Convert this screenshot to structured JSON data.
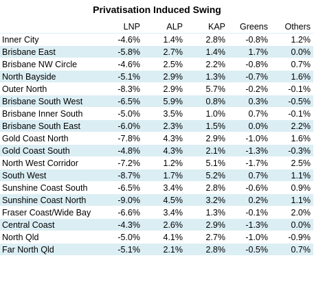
{
  "title": "Privatisation Induced Swing",
  "columns": [
    "",
    "LNP",
    "ALP",
    "KAP",
    "Greens",
    "Others"
  ],
  "rows": [
    [
      "Inner City",
      "-4.6%",
      "1.4%",
      "2.8%",
      "-0.8%",
      "1.2%"
    ],
    [
      "Brisbane East",
      "-5.8%",
      "2.7%",
      "1.4%",
      "1.7%",
      "0.0%"
    ],
    [
      "Brisbane NW Circle",
      "-4.6%",
      "2.5%",
      "2.2%",
      "-0.8%",
      "0.7%"
    ],
    [
      "North Bayside",
      "-5.1%",
      "2.9%",
      "1.3%",
      "-0.7%",
      "1.6%"
    ],
    [
      "Outer North",
      "-8.3%",
      "2.9%",
      "5.7%",
      "-0.2%",
      "-0.1%"
    ],
    [
      "Brisbane South West",
      "-6.5%",
      "5.9%",
      "0.8%",
      "0.3%",
      "-0.5%"
    ],
    [
      "Brisbane Inner South",
      "-5.0%",
      "3.5%",
      "1.0%",
      "0.7%",
      "-0.1%"
    ],
    [
      "Brisbane South East",
      "-6.0%",
      "2.3%",
      "1.5%",
      "0.0%",
      "2.2%"
    ],
    [
      "Gold Coast North",
      "-7.8%",
      "4.3%",
      "2.9%",
      "-1.0%",
      "1.6%"
    ],
    [
      "Gold Coast South",
      "-4.8%",
      "4.3%",
      "2.1%",
      "-1.3%",
      "-0.3%"
    ],
    [
      "North West Corridor",
      "-7.2%",
      "1.2%",
      "5.1%",
      "-1.7%",
      "2.5%"
    ],
    [
      "South West",
      "-8.7%",
      "1.7%",
      "5.2%",
      "0.7%",
      "1.1%"
    ],
    [
      "Sunshine Coast South",
      "-6.5%",
      "3.4%",
      "2.8%",
      "-0.6%",
      "0.9%"
    ],
    [
      "Sunshine Coast North",
      "-9.0%",
      "4.5%",
      "3.2%",
      "0.2%",
      "1.1%"
    ],
    [
      "Fraser Coast/Wide Bay",
      "-6.6%",
      "3.4%",
      "1.3%",
      "-0.1%",
      "2.0%"
    ],
    [
      "Central Coast",
      "-4.3%",
      "2.6%",
      "2.9%",
      "-1.3%",
      "0.0%"
    ],
    [
      "North Qld",
      "-5.0%",
      "4.1%",
      "2.7%",
      "-1.0%",
      "-0.9%"
    ],
    [
      "Far North Qld",
      "-5.1%",
      "2.1%",
      "2.8%",
      "-0.5%",
      "0.7%"
    ]
  ]
}
